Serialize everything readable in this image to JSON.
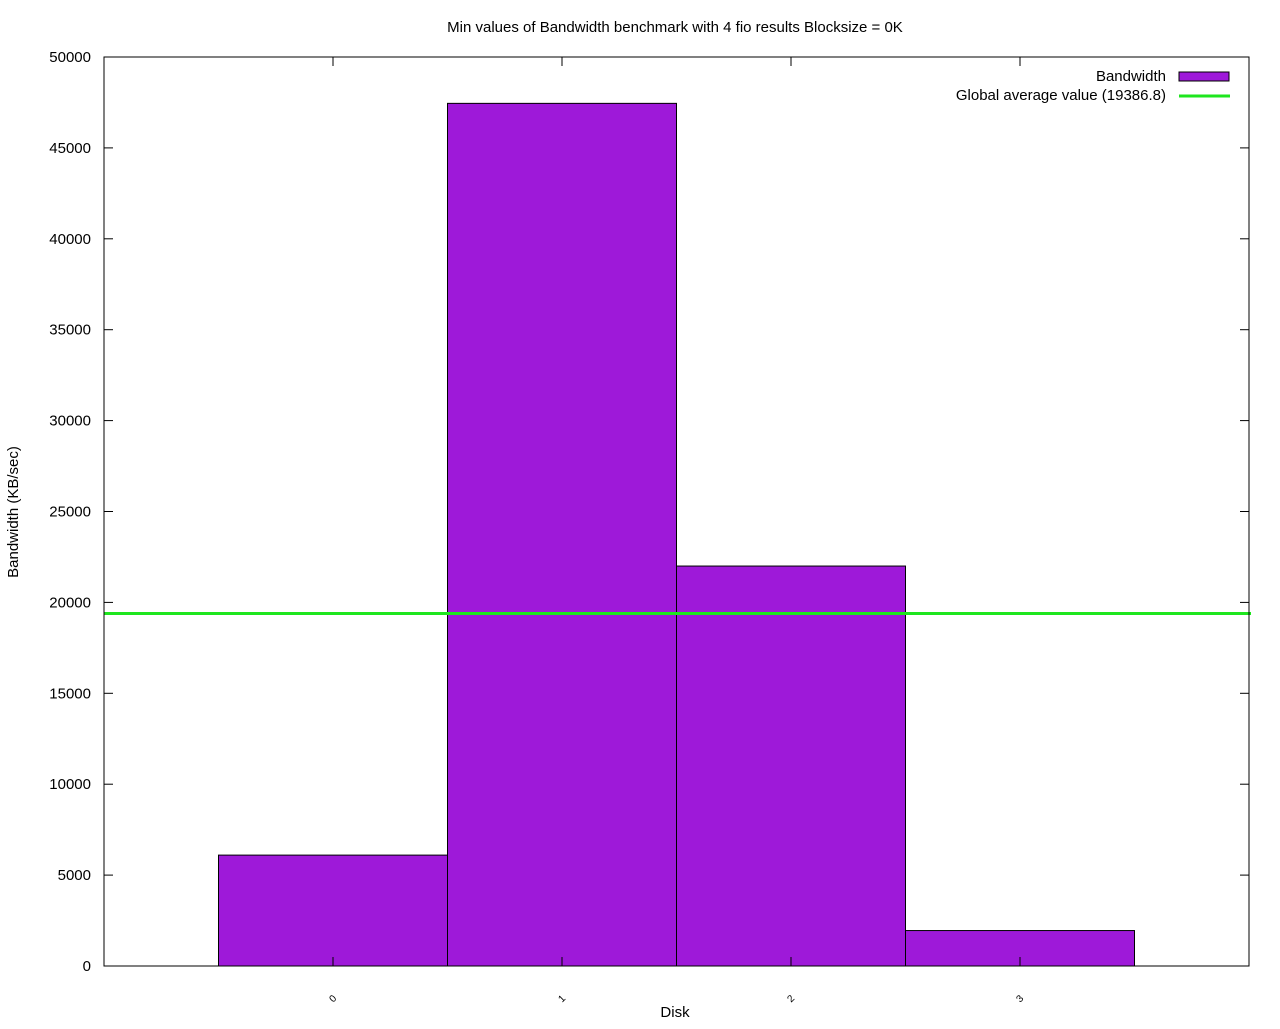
{
  "chart_data": {
    "type": "bar",
    "title": "Min values of Bandwidth benchmark with 4 fio results  Blocksize = 0K",
    "xlabel": "Disk",
    "ylabel": "Bandwidth (KB/sec)",
    "categories": [
      "0",
      "1",
      "2",
      "3"
    ],
    "series": [
      {
        "name": "Bandwidth",
        "values": [
          6100,
          47450,
          22000,
          1950
        ],
        "color": "#9e19d9"
      }
    ],
    "reference_line": {
      "label": "Global average value (19386.8)",
      "value": 19386.8,
      "color": "#1ee61e"
    },
    "ylim": [
      0,
      50000
    ],
    "yticks": [
      0,
      5000,
      10000,
      15000,
      20000,
      25000,
      30000,
      35000,
      40000,
      45000,
      50000
    ],
    "grid": false,
    "legend": "top-right"
  }
}
